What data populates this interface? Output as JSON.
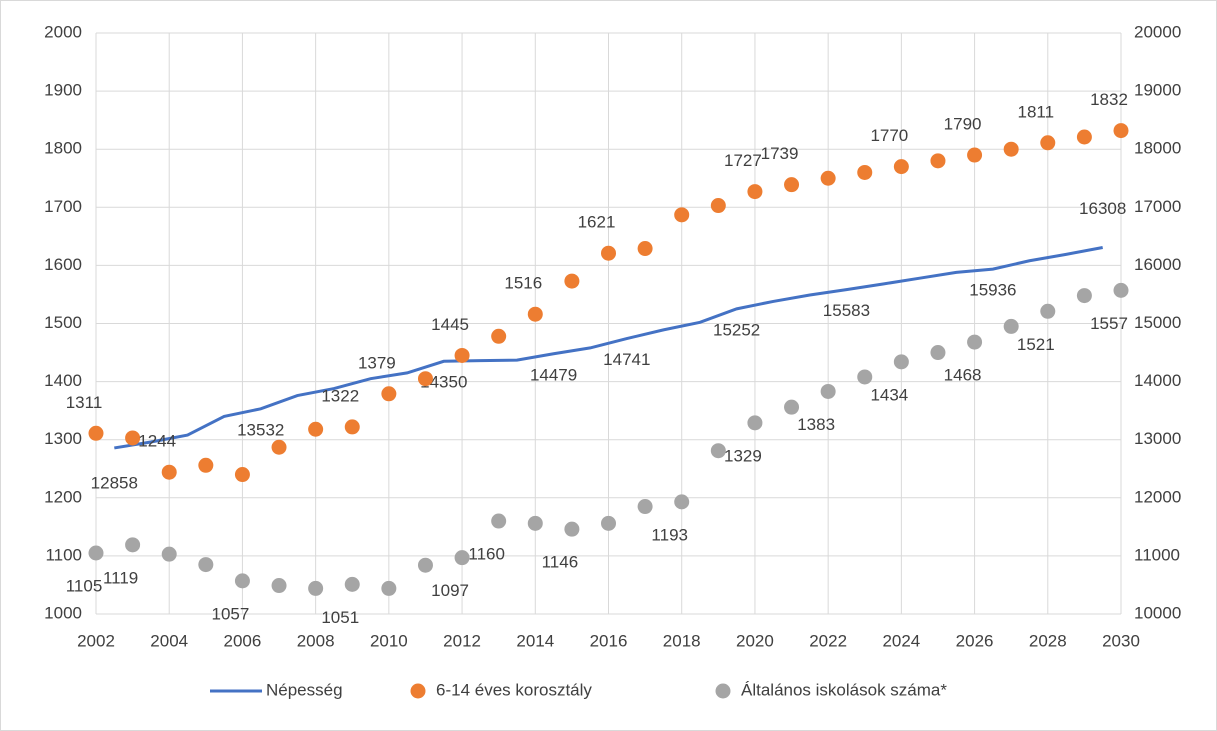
{
  "chart_data": {
    "type": "line",
    "x": [
      2002,
      2003,
      2004,
      2005,
      2006,
      2007,
      2008,
      2009,
      2010,
      2011,
      2012,
      2013,
      2014,
      2015,
      2016,
      2017,
      2018,
      2019,
      2020,
      2021,
      2022,
      2023,
      2024,
      2025,
      2026,
      2027,
      2028,
      2029,
      2030
    ],
    "xlim": [
      2002,
      2030
    ],
    "xticks": [
      2002,
      2004,
      2006,
      2008,
      2010,
      2012,
      2014,
      2016,
      2018,
      2020,
      2022,
      2024,
      2026,
      2028,
      2030
    ],
    "ylim": [
      1000,
      2000
    ],
    "yticks": [
      1000,
      1100,
      1200,
      1300,
      1400,
      1500,
      1600,
      1700,
      1800,
      1900,
      2000
    ],
    "y2lim": [
      10000,
      20000
    ],
    "y2ticks": [
      10000,
      11000,
      12000,
      13000,
      14000,
      15000,
      16000,
      17000,
      18000,
      19000,
      20000
    ],
    "grid": true,
    "legend": "bottom",
    "series": [
      {
        "name": "Népesség",
        "type": "line",
        "axis": "y2",
        "color": "#4472c4",
        "x": [
          2002.5,
          2003.5,
          2004.5,
          2005.5,
          2006.5,
          2007.5,
          2008.5,
          2009.5,
          2010.5,
          2011.5,
          2012.5,
          2013.5,
          2014.5,
          2015.5,
          2016.5,
          2017.5,
          2018.5,
          2019.5,
          2020.5,
          2021.5,
          2022.5,
          2023.5,
          2024.5,
          2025.5,
          2026.5,
          2027.5,
          2028.5,
          2029.5
        ],
        "values": [
          12858,
          12960,
          13080,
          13400,
          13532,
          13760,
          13880,
          14050,
          14150,
          14350,
          14360,
          14370,
          14479,
          14580,
          14741,
          14890,
          15020,
          15252,
          15380,
          15490,
          15583,
          15680,
          15780,
          15880,
          15936,
          16080,
          16190,
          16308
        ],
        "value_labels": [
          "12858",
          null,
          null,
          null,
          "13532",
          null,
          null,
          null,
          null,
          "14350",
          null,
          null,
          "14479",
          null,
          "14741",
          null,
          null,
          "15252",
          null,
          null,
          "15583",
          null,
          null,
          null,
          "15936",
          null,
          null,
          "16308"
        ]
      },
      {
        "name": "6-14 éves korosztály",
        "type": "scatter",
        "color": "#ed7d31",
        "values": [
          1311,
          1303,
          1244,
          1256,
          1240,
          1287,
          1318,
          1322,
          1379,
          1405,
          1445,
          1478,
          1516,
          1573,
          1621,
          1629,
          1687,
          1703,
          1727,
          1739,
          1750,
          1760,
          1770,
          1780,
          1790,
          1800,
          1811,
          1821,
          1832
        ],
        "value_labels": [
          "1311",
          null,
          "1244",
          null,
          null,
          null,
          null,
          "1322",
          "1379",
          null,
          "1445",
          null,
          "1516",
          null,
          "1621",
          null,
          null,
          null,
          "1727",
          "1739",
          null,
          null,
          "1770",
          null,
          "1790",
          null,
          "1811",
          null,
          "1832"
        ]
      },
      {
        "name": "Általános iskolások száma*",
        "type": "scatter",
        "color": "#a5a5a5",
        "values": [
          1105,
          1119,
          1103,
          1085,
          1057,
          1049,
          1044,
          1051,
          1044,
          1084,
          1097,
          1160,
          1156,
          1146,
          1156,
          1185,
          1193,
          1281,
          1329,
          1356,
          1383,
          1408,
          1434,
          1450,
          1468,
          1495,
          1521,
          1548,
          1557
        ],
        "value_labels": [
          "1105",
          "1119",
          null,
          null,
          "1057",
          null,
          null,
          "1051",
          null,
          null,
          "1097",
          "1160",
          null,
          "1146",
          null,
          null,
          "1193",
          null,
          "1329",
          null,
          "1383",
          null,
          "1434",
          null,
          "1468",
          null,
          "1521",
          null,
          "1557"
        ]
      }
    ]
  }
}
